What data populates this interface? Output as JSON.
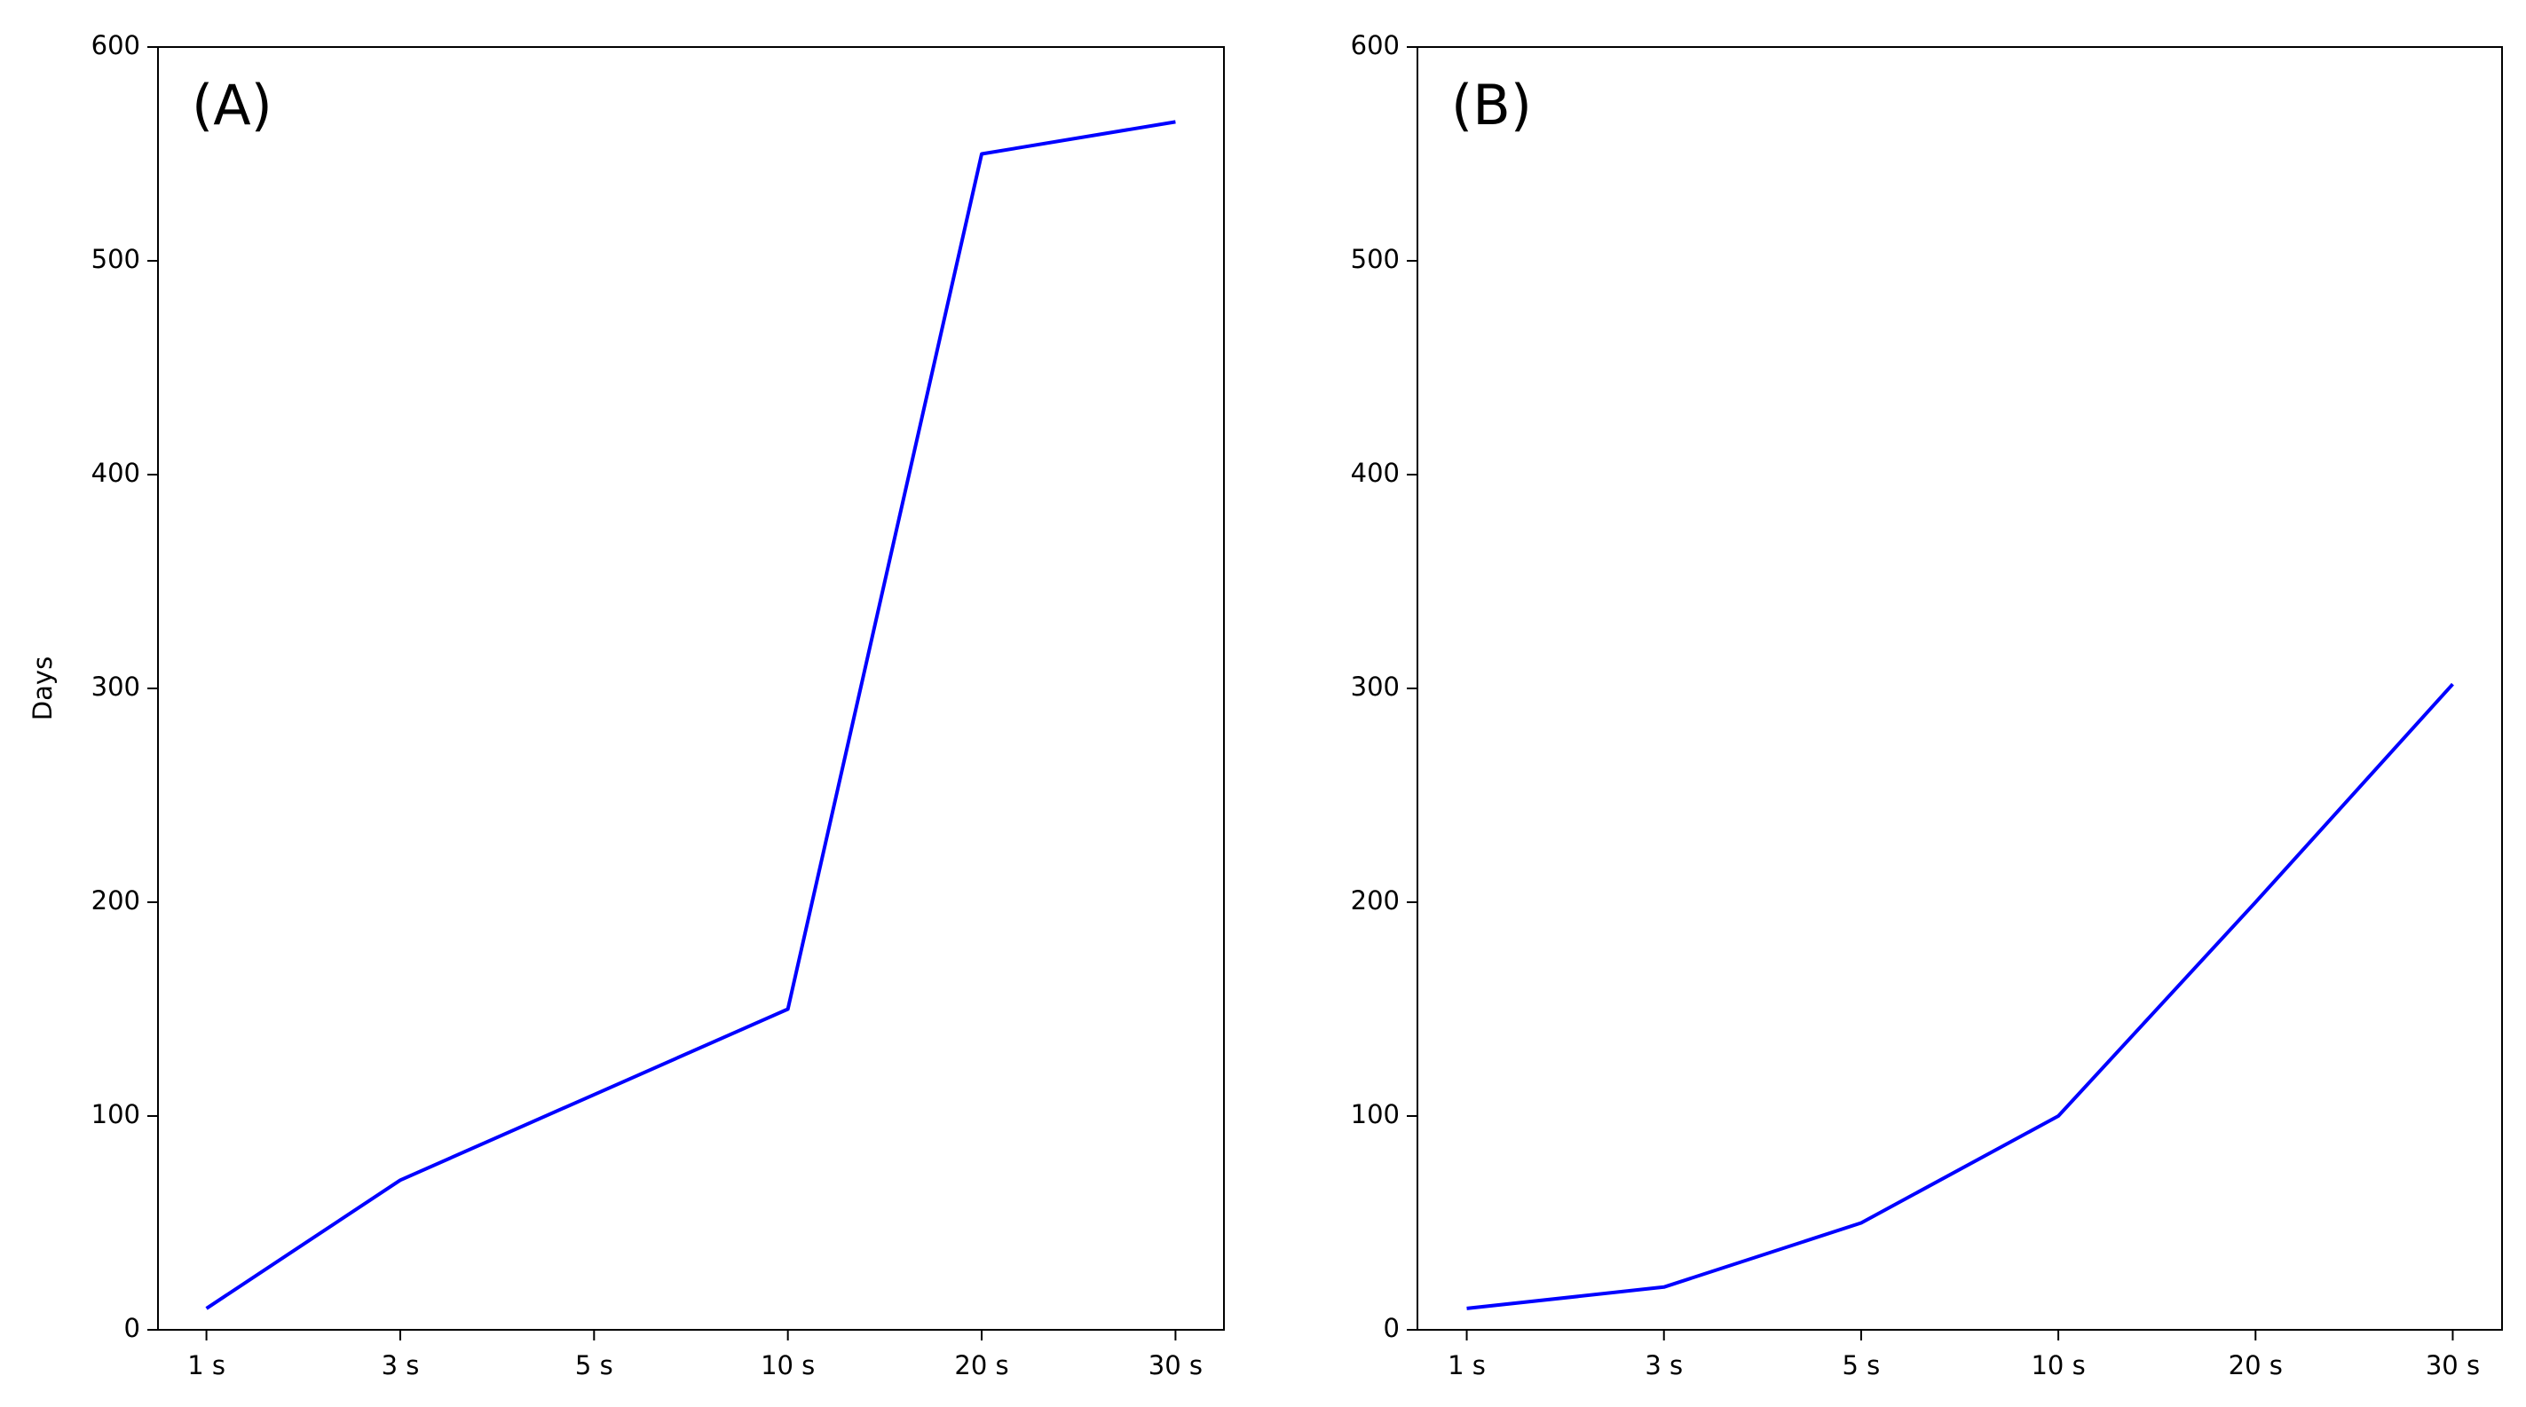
{
  "chart_data": [
    {
      "type": "line",
      "annotation": "(A)",
      "y_label": "Days",
      "categories": [
        "1 s",
        "3 s",
        "5 s",
        "10 s",
        "20 s",
        "30 s"
      ],
      "values": [
        10,
        70,
        110,
        150,
        550,
        565
      ],
      "color": "#0000ff",
      "ylim": [
        0,
        600
      ],
      "yticks": [
        0,
        100,
        200,
        300,
        400,
        500,
        600
      ]
    },
    {
      "type": "line",
      "annotation": "(B)",
      "categories": [
        "1 s",
        "3 s",
        "5 s",
        "10 s",
        "20 s",
        "30 s"
      ],
      "values": [
        10,
        20,
        50,
        100,
        200,
        302
      ],
      "color": "#0000ff",
      "ylim": [
        0,
        600
      ],
      "yticks": [
        0,
        100,
        200,
        300,
        400,
        500,
        600
      ]
    }
  ]
}
